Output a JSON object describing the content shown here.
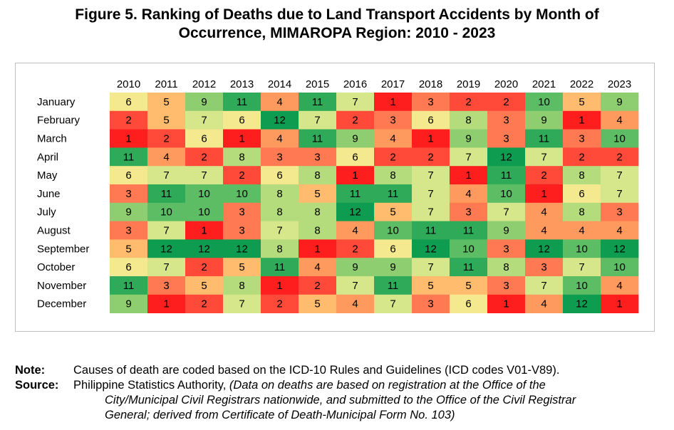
{
  "title_line1": "Figure 5. Ranking of Deaths due to Land Transport Accidents by Month of",
  "title_line2": "Occurrence, MIMAROPA Region: 2010 - 2023",
  "note": {
    "label": "Note:",
    "text": "Causes of death are coded based on the ICD-10 Rules and Guidelines (ICD codes V01-V89)."
  },
  "source": {
    "label": "Source:",
    "text_plain": "Philippine Statistics Authority,",
    "text_italic_1": "(Data on deaths are based on registration at the Office of the",
    "text_italic_2": "City/Municipal Civil Registrars nationwide, and submitted to the Office of the Civil Registrar",
    "text_italic_3": "General; derived from Certificate of Death-Municipal Form No. 103)"
  },
  "colors": {
    "rank_1": "#ff1e1e",
    "rank_2": "#ff4a3a",
    "rank_3": "#ff7a52",
    "rank_4": "#ff9a5e",
    "rank_5": "#ffbb6e",
    "rank_6": "#f4e98e",
    "rank_7": "#d5e78a",
    "rank_8": "#b4dc7c",
    "rank_9": "#8ece70",
    "rank_10": "#5dbd64",
    "rank_11": "#2eaa58",
    "rank_12": "#0e9c50"
  },
  "chart_data": {
    "type": "heatmap",
    "x": [
      "2010",
      "2011",
      "2012",
      "2013",
      "2014",
      "2015",
      "2016",
      "2017",
      "2018",
      "2019",
      "2020",
      "2021",
      "2022",
      "2023"
    ],
    "y": [
      "January",
      "February",
      "March",
      "April",
      "May",
      "June",
      "July",
      "August",
      "September",
      "October",
      "November",
      "December"
    ],
    "values": [
      [
        6,
        5,
        9,
        11,
        4,
        11,
        7,
        1,
        3,
        2,
        2,
        10,
        5,
        9
      ],
      [
        2,
        5,
        7,
        6,
        12,
        7,
        2,
        3,
        6,
        8,
        3,
        9,
        1,
        4
      ],
      [
        1,
        2,
        6,
        1,
        4,
        11,
        9,
        4,
        1,
        9,
        3,
        11,
        3,
        10
      ],
      [
        11,
        4,
        2,
        8,
        3,
        3,
        6,
        2,
        2,
        7,
        12,
        7,
        2,
        2
      ],
      [
        6,
        7,
        7,
        2,
        6,
        8,
        1,
        8,
        7,
        1,
        11,
        2,
        8,
        7
      ],
      [
        3,
        11,
        10,
        10,
        8,
        5,
        11,
        11,
        7,
        4,
        10,
        1,
        6,
        7
      ],
      [
        9,
        10,
        10,
        3,
        8,
        8,
        12,
        5,
        7,
        3,
        7,
        4,
        8,
        3
      ],
      [
        3,
        7,
        1,
        3,
        7,
        8,
        4,
        10,
        11,
        11,
        9,
        4,
        4,
        4
      ],
      [
        5,
        12,
        12,
        12,
        8,
        1,
        2,
        6,
        12,
        10,
        3,
        12,
        10,
        12
      ],
      [
        6,
        7,
        2,
        5,
        11,
        4,
        9,
        9,
        7,
        11,
        8,
        3,
        7,
        10
      ],
      [
        11,
        3,
        5,
        8,
        1,
        2,
        7,
        11,
        5,
        5,
        3,
        7,
        10,
        4
      ],
      [
        9,
        1,
        2,
        7,
        2,
        5,
        4,
        7,
        3,
        6,
        1,
        4,
        12,
        1
      ]
    ],
    "scale": "rank 1 (red) to 12 (green)"
  }
}
